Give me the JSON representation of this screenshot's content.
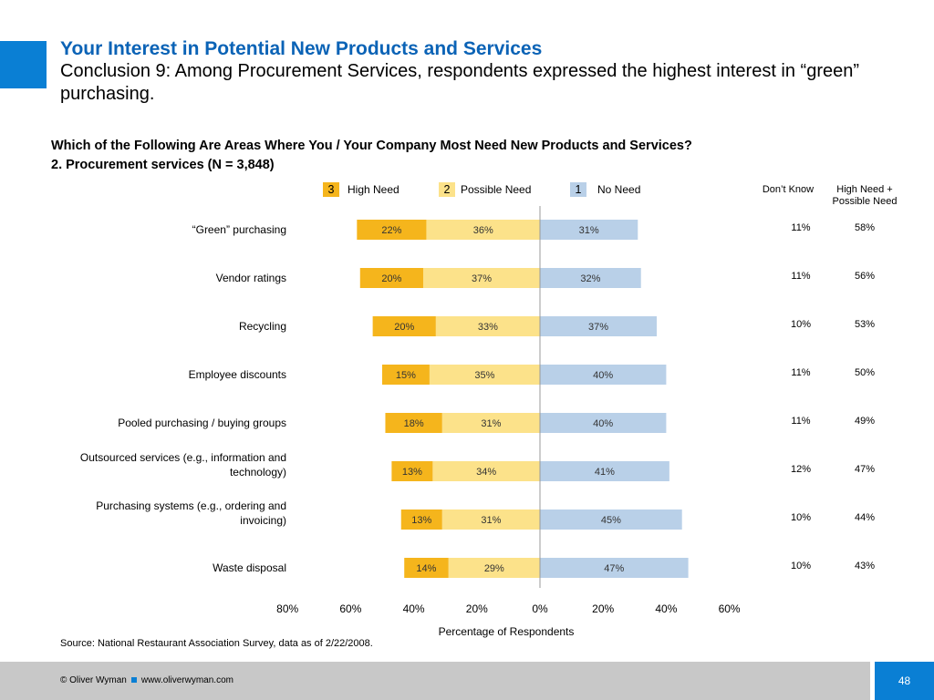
{
  "header": {
    "title": "Your Interest in Potential New Products and Services",
    "subtitle": "Conclusion 9: Among Procurement Services, respondents expressed the highest interest in “green” purchasing."
  },
  "question": {
    "line1": "Which of the Following Are Areas Where You / Your Company Most Need New Products and Services?",
    "line2": "2. Procurement services (N = 3,848)"
  },
  "legend": [
    {
      "num": "3",
      "label": "High Need",
      "color": "#f5b51c"
    },
    {
      "num": "2",
      "label": "Possible Need",
      "color": "#fce28a"
    },
    {
      "num": "1",
      "label": "No Need",
      "color": "#b9d0e8"
    }
  ],
  "columns": {
    "dont_know": "Don’t Know",
    "combined": "High Need + Possible Need"
  },
  "chart_data": {
    "type": "bar",
    "orientation": "horizontal-diverging",
    "categories": [
      "“Green” purchasing",
      "Vendor ratings",
      "Recycling",
      "Employee discounts",
      "Pooled purchasing / buying groups",
      "Outsourced services (e.g., information and technology)",
      "Purchasing systems (e.g., ordering and invoicing)",
      "Waste disposal"
    ],
    "series": [
      {
        "name": "High Need",
        "values": [
          22,
          20,
          20,
          15,
          18,
          13,
          13,
          14
        ]
      },
      {
        "name": "Possible Need",
        "values": [
          36,
          37,
          33,
          35,
          31,
          34,
          31,
          29
        ]
      },
      {
        "name": "No Need",
        "values": [
          31,
          32,
          37,
          40,
          40,
          41,
          45,
          47
        ]
      }
    ],
    "dont_know": [
      "11%",
      "11%",
      "10%",
      "11%",
      "11%",
      "12%",
      "10%",
      "10%"
    ],
    "high_plus_possible": [
      "58%",
      "56%",
      "53%",
      "50%",
      "49%",
      "47%",
      "44%",
      "43%"
    ],
    "xlabel": "Percentage of Respondents",
    "xlim": [
      -80,
      60
    ],
    "xticks": [
      "80%",
      "60%",
      "40%",
      "20%",
      "0%",
      "20%",
      "40%",
      "60%"
    ],
    "grid": false
  },
  "source": "Source: National Restaurant Association Survey, data as of 2/22/2008.",
  "footer": {
    "copyright": "© Oliver Wyman",
    "url": "www.oliverwyman.com",
    "page": "48"
  }
}
